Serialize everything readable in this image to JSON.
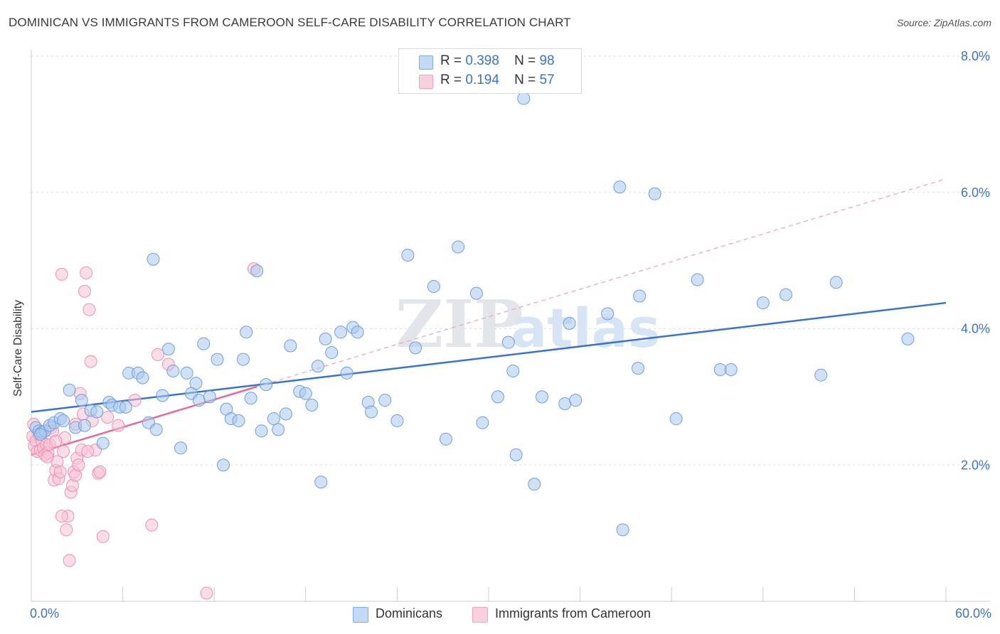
{
  "chart_data": {
    "type": "scatter",
    "title": "DOMINICAN VS IMMIGRANTS FROM CAMEROON SELF-CARE DISABILITY CORRELATION CHART",
    "source": "Source: ZipAtlas.com",
    "ylabel": "Self-Care Disability",
    "xlabel": "",
    "xlim": [
      0,
      60
    ],
    "ylim": [
      0,
      8
    ],
    "x_tick_labels": [
      "0.0%",
      "60.0%"
    ],
    "y_tick_labels": [
      "2.0%",
      "4.0%",
      "6.0%",
      "8.0%"
    ],
    "y_ticks": [
      2,
      4,
      6,
      8
    ],
    "watermark": {
      "zip": "ZIP",
      "atlas": "atlas"
    },
    "legend_stats": [
      {
        "r_label": "R =",
        "r_value": "0.398",
        "n_label": "N =",
        "n_value": "98"
      },
      {
        "r_label": "R =",
        "r_value": "0.194",
        "n_label": "N =",
        "n_value": "57"
      }
    ],
    "series": [
      {
        "name": "Dominicans",
        "color": "#a9c8ef",
        "stroke": "#6f9fdc",
        "line_color": "#3a74c6",
        "trend": {
          "x": [
            0,
            60
          ],
          "y": [
            2.78,
            4.38
          ]
        },
        "points": [
          [
            0.3,
            2.55
          ],
          [
            0.5,
            2.5
          ],
          [
            0.7,
            2.48
          ],
          [
            0.9,
            2.5
          ],
          [
            1.2,
            2.58
          ],
          [
            1.5,
            2.62
          ],
          [
            1.9,
            2.68
          ],
          [
            2.1,
            2.65
          ],
          [
            2.5,
            3.1
          ],
          [
            2.9,
            2.55
          ],
          [
            3.3,
            2.95
          ],
          [
            3.5,
            2.58
          ],
          [
            3.9,
            2.8
          ],
          [
            4.3,
            2.78
          ],
          [
            4.7,
            2.32
          ],
          [
            5.1,
            2.92
          ],
          [
            5.3,
            2.88
          ],
          [
            5.8,
            2.85
          ],
          [
            6.2,
            2.85
          ],
          [
            6.4,
            3.35
          ],
          [
            7.0,
            3.35
          ],
          [
            7.3,
            3.28
          ],
          [
            7.7,
            2.62
          ],
          [
            8.0,
            5.02
          ],
          [
            8.2,
            2.52
          ],
          [
            8.6,
            3.02
          ],
          [
            9.0,
            3.7
          ],
          [
            9.3,
            3.38
          ],
          [
            9.8,
            2.25
          ],
          [
            10.2,
            3.35
          ],
          [
            10.5,
            3.05
          ],
          [
            10.8,
            3.2
          ],
          [
            11.0,
            2.95
          ],
          [
            11.3,
            3.78
          ],
          [
            11.7,
            3.0
          ],
          [
            12.2,
            3.55
          ],
          [
            12.6,
            2.0
          ],
          [
            12.8,
            2.82
          ],
          [
            13.1,
            2.68
          ],
          [
            13.6,
            2.65
          ],
          [
            13.9,
            3.55
          ],
          [
            14.1,
            3.95
          ],
          [
            14.4,
            2.98
          ],
          [
            14.8,
            4.85
          ],
          [
            15.1,
            2.5
          ],
          [
            15.4,
            3.18
          ],
          [
            15.9,
            2.68
          ],
          [
            16.2,
            2.52
          ],
          [
            16.7,
            2.75
          ],
          [
            17.0,
            3.75
          ],
          [
            17.6,
            3.08
          ],
          [
            18.0,
            3.05
          ],
          [
            18.4,
            2.88
          ],
          [
            18.8,
            3.45
          ],
          [
            19.0,
            1.75
          ],
          [
            19.3,
            3.85
          ],
          [
            19.7,
            3.65
          ],
          [
            20.3,
            3.95
          ],
          [
            20.7,
            3.35
          ],
          [
            21.1,
            4.02
          ],
          [
            21.4,
            3.95
          ],
          [
            22.1,
            2.92
          ],
          [
            22.3,
            2.78
          ],
          [
            23.2,
            2.95
          ],
          [
            24.0,
            2.65
          ],
          [
            24.7,
            5.08
          ],
          [
            25.2,
            3.72
          ],
          [
            26.4,
            4.62
          ],
          [
            27.2,
            2.38
          ],
          [
            28.0,
            5.2
          ],
          [
            29.2,
            4.52
          ],
          [
            29.6,
            2.62
          ],
          [
            30.6,
            3.0
          ],
          [
            31.3,
            3.8
          ],
          [
            31.6,
            3.38
          ],
          [
            31.8,
            2.15
          ],
          [
            32.3,
            7.38
          ],
          [
            33.0,
            1.72
          ],
          [
            33.5,
            3.0
          ],
          [
            35.0,
            2.9
          ],
          [
            35.3,
            4.08
          ],
          [
            35.7,
            2.95
          ],
          [
            37.8,
            4.22
          ],
          [
            38.6,
            6.08
          ],
          [
            38.8,
            1.05
          ],
          [
            39.8,
            3.42
          ],
          [
            39.9,
            4.48
          ],
          [
            40.9,
            5.98
          ],
          [
            42.3,
            2.68
          ],
          [
            43.7,
            4.72
          ],
          [
            45.2,
            3.4
          ],
          [
            45.9,
            3.4
          ],
          [
            48.0,
            4.38
          ],
          [
            49.5,
            4.5
          ],
          [
            51.8,
            3.32
          ],
          [
            52.8,
            4.68
          ],
          [
            57.5,
            3.85
          ],
          [
            0.6,
            2.45
          ]
        ]
      },
      {
        "name": "Immigrants from Cameroon",
        "color": "#f6c2d3",
        "stroke": "#ee92b0",
        "line_color": "#e8699a",
        "trend": {
          "x": [
            0,
            14.8
          ],
          "y": [
            2.15,
            3.15
          ]
        },
        "dashed_trend": {
          "x": [
            14.8,
            60
          ],
          "y": [
            3.15,
            6.2
          ]
        },
        "points": [
          [
            0.1,
            2.42
          ],
          [
            0.2,
            2.28
          ],
          [
            0.3,
            2.35
          ],
          [
            0.4,
            2.2
          ],
          [
            0.5,
            2.45
          ],
          [
            0.6,
            2.22
          ],
          [
            0.7,
            2.35
          ],
          [
            0.8,
            2.25
          ],
          [
            0.9,
            2.15
          ],
          [
            1.0,
            2.3
          ],
          [
            1.1,
            2.18
          ],
          [
            1.2,
            2.3
          ],
          [
            1.3,
            2.55
          ],
          [
            1.4,
            2.5
          ],
          [
            1.5,
            1.78
          ],
          [
            1.6,
            1.92
          ],
          [
            1.7,
            2.05
          ],
          [
            1.8,
            1.8
          ],
          [
            1.9,
            1.9
          ],
          [
            2.0,
            4.8
          ],
          [
            2.1,
            2.2
          ],
          [
            2.2,
            2.4
          ],
          [
            2.3,
            1.05
          ],
          [
            2.4,
            1.25
          ],
          [
            2.5,
            0.6
          ],
          [
            2.6,
            1.6
          ],
          [
            2.7,
            1.7
          ],
          [
            2.8,
            1.9
          ],
          [
            2.9,
            1.85
          ],
          [
            3.0,
            2.1
          ],
          [
            3.1,
            2.0
          ],
          [
            3.2,
            3.05
          ],
          [
            3.3,
            2.22
          ],
          [
            3.4,
            2.75
          ],
          [
            3.5,
            4.55
          ],
          [
            3.6,
            4.82
          ],
          [
            3.8,
            4.28
          ],
          [
            3.9,
            3.52
          ],
          [
            4.0,
            2.65
          ],
          [
            4.2,
            2.22
          ],
          [
            4.4,
            1.88
          ],
          [
            4.5,
            1.9
          ],
          [
            4.7,
            0.95
          ],
          [
            5.0,
            2.7
          ],
          [
            5.7,
            2.58
          ],
          [
            6.8,
            2.95
          ],
          [
            7.9,
            1.12
          ],
          [
            8.3,
            3.62
          ],
          [
            9.0,
            3.48
          ],
          [
            11.5,
            0.12
          ],
          [
            14.6,
            4.88
          ],
          [
            0.15,
            2.6
          ],
          [
            1.05,
            2.12
          ],
          [
            1.6,
            2.35
          ],
          [
            2.0,
            1.25
          ],
          [
            2.9,
            2.6
          ],
          [
            3.7,
            2.2
          ]
        ]
      }
    ]
  }
}
